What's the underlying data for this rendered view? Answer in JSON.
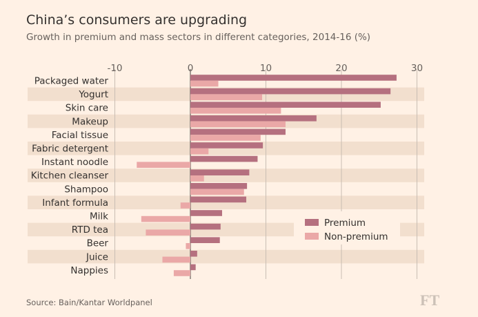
{
  "title": "China’s consumers are upgrading",
  "subtitle": "Growth in premium and mass sectors in different categories, 2014-16 (%)",
  "source": "Source: Bain/Kantar Worldpanel",
  "brand": "FT",
  "colors": {
    "background": "#fff1e5",
    "band": "#f2dfce",
    "premium": "#b5707f",
    "non_premium": "#eaa8a7",
    "grid": "#c8bdb3",
    "zero_line": "#66605c"
  },
  "chart_data": {
    "type": "bar",
    "orientation": "horizontal",
    "title": "China’s consumers are upgrading",
    "subtitle": "Growth in premium and mass sectors in different categories, 2014-16 (%)",
    "xlim": [
      -10,
      30
    ],
    "x_ticks": [
      "-10",
      "0",
      "10",
      "20",
      "30"
    ],
    "grid": true,
    "legend_position": "bottom-right",
    "categories": [
      "Packaged water",
      "Yogurt",
      "Skin care",
      "Makeup",
      "Facial tissue",
      "Fabric detergent",
      "Instant noodle",
      "Kitchen cleanser",
      "Shampoo",
      "Infant formula",
      "Milk",
      "RTD tea",
      "Beer",
      "Juice",
      "Nappies"
    ],
    "series": [
      {
        "name": "Premium",
        "color": "#b5707f",
        "values": [
          27.3,
          26.5,
          25.2,
          16.7,
          12.6,
          9.6,
          8.9,
          7.8,
          7.5,
          7.4,
          4.2,
          4.0,
          3.9,
          0.9,
          0.7
        ]
      },
      {
        "name": "Non-premium",
        "color": "#eaa8a7",
        "values": [
          3.7,
          9.5,
          12.0,
          12.6,
          9.3,
          2.4,
          -7.1,
          1.8,
          7.1,
          -1.3,
          -6.5,
          -5.9,
          -0.6,
          -3.7,
          -2.2
        ]
      }
    ]
  }
}
